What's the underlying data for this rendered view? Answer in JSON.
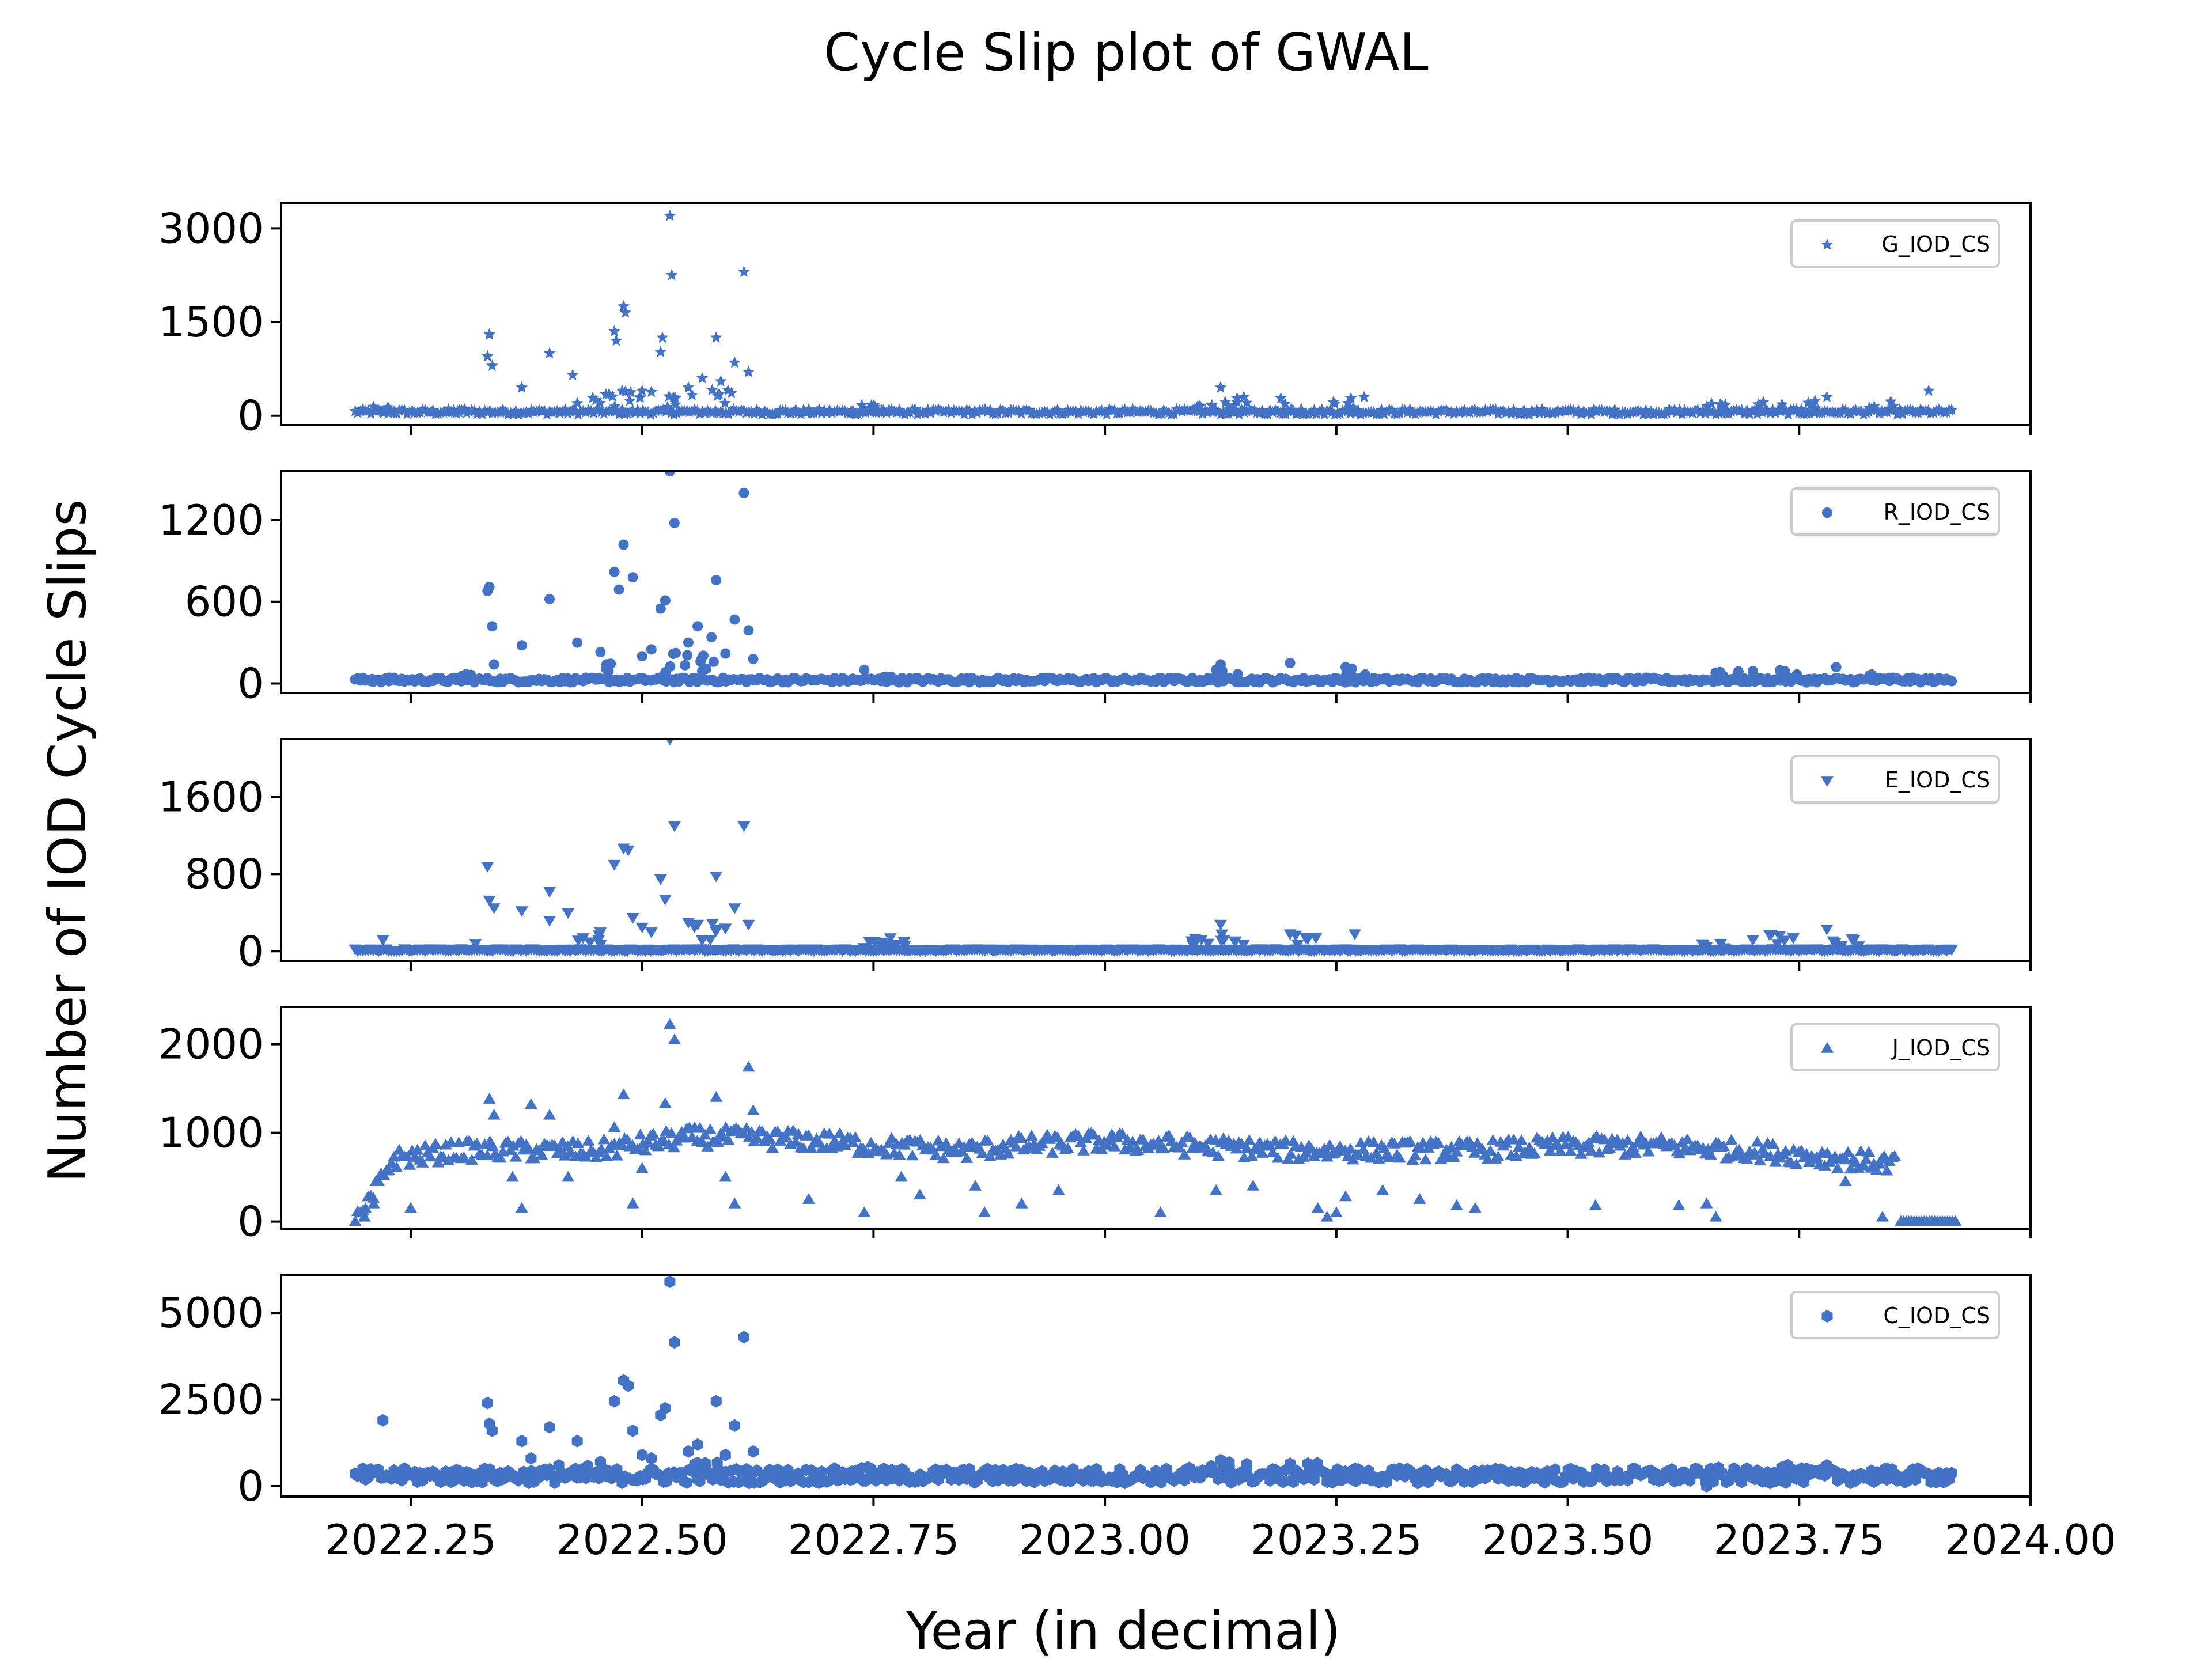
{
  "title": "Cycle Slip plot of GWAL",
  "xlabel": "Year (in decimal)",
  "ylabel": "Number of IOD Cycle Slips",
  "colors": {
    "marker": "#4472C4",
    "axis": "#000000",
    "legend_border": "#cccccc"
  },
  "chart_data": [
    {
      "type": "scatter",
      "legend": "G_IOD_CS",
      "marker": "star",
      "xlim": [
        2022.11,
        2024.0
      ],
      "ylim": [
        -150,
        3400
      ],
      "xticks": [
        "2022.25",
        "2022.50",
        "2022.75",
        "2023.00",
        "2023.25",
        "2023.50",
        "2023.75",
        "2024.00"
      ],
      "yticks": [
        0,
        1500,
        3000
      ],
      "ytick_labels": [
        "0",
        "1500",
        "3000"
      ],
      "baseline": 60,
      "points": [
        [
          2022.335,
          1300
        ],
        [
          2022.333,
          950
        ],
        [
          2022.338,
          800
        ],
        [
          2022.37,
          450
        ],
        [
          2022.4,
          1000
        ],
        [
          2022.425,
          650
        ],
        [
          2022.47,
          1350
        ],
        [
          2022.472,
          1200
        ],
        [
          2022.48,
          1750
        ],
        [
          2022.482,
          1650
        ],
        [
          2022.52,
          1020
        ],
        [
          2022.522,
          1250
        ],
        [
          2022.53,
          3200
        ],
        [
          2022.532,
          2250
        ],
        [
          2022.55,
          450
        ],
        [
          2022.565,
          600
        ],
        [
          2022.58,
          1250
        ],
        [
          2022.585,
          550
        ],
        [
          2022.6,
          850
        ],
        [
          2022.61,
          2300
        ],
        [
          2022.615,
          700
        ],
        [
          2022.5,
          400
        ],
        [
          2022.51,
          380
        ],
        [
          2022.45,
          250
        ],
        [
          2022.43,
          200
        ],
        [
          2023.125,
          450
        ],
        [
          2023.15,
          300
        ],
        [
          2023.28,
          300
        ],
        [
          2023.89,
          400
        ],
        [
          2023.78,
          300
        ],
        [
          2023.19,
          280
        ]
      ],
      "baseline_spikes": [
        [
          2022.22,
          120
        ],
        [
          2022.3,
          100
        ],
        [
          2022.46,
          300
        ],
        [
          2022.49,
          350
        ],
        [
          2022.54,
          300
        ],
        [
          2022.59,
          350
        ],
        [
          2022.74,
          150
        ],
        [
          2022.76,
          120
        ],
        [
          2023.11,
          200
        ],
        [
          2023.14,
          250
        ],
        [
          2023.2,
          200
        ],
        [
          2023.26,
          250
        ],
        [
          2023.66,
          180
        ],
        [
          2023.72,
          220
        ],
        [
          2023.76,
          220
        ],
        [
          2023.84,
          200
        ]
      ]
    },
    {
      "type": "scatter",
      "legend": "R_IOD_CS",
      "marker": "circle",
      "xlim": [
        2022.11,
        2024.0
      ],
      "ylim": [
        -70,
        1560
      ],
      "xticks": [
        "2022.25",
        "2022.50",
        "2022.75",
        "2023.00",
        "2023.25",
        "2023.50",
        "2023.75",
        "2024.00"
      ],
      "yticks": [
        0,
        600,
        1200
      ],
      "ytick_labels": [
        "0",
        "600",
        "1200"
      ],
      "baseline": 25,
      "points": [
        [
          2022.333,
          680
        ],
        [
          2022.335,
          710
        ],
        [
          2022.338,
          420
        ],
        [
          2022.34,
          140
        ],
        [
          2022.4,
          620
        ],
        [
          2022.37,
          280
        ],
        [
          2022.43,
          300
        ],
        [
          2022.47,
          820
        ],
        [
          2022.475,
          690
        ],
        [
          2022.48,
          1020
        ],
        [
          2022.49,
          780
        ],
        [
          2022.52,
          550
        ],
        [
          2022.525,
          610
        ],
        [
          2022.53,
          1560
        ],
        [
          2022.535,
          1180
        ],
        [
          2022.55,
          300
        ],
        [
          2022.56,
          420
        ],
        [
          2022.575,
          340
        ],
        [
          2022.58,
          760
        ],
        [
          2022.6,
          470
        ],
        [
          2022.61,
          1400
        ],
        [
          2022.615,
          390
        ],
        [
          2022.5,
          200
        ],
        [
          2022.51,
          250
        ],
        [
          2022.455,
          230
        ],
        [
          2022.59,
          220
        ],
        [
          2022.62,
          180
        ],
        [
          2022.74,
          100
        ],
        [
          2023.125,
          140
        ],
        [
          2023.2,
          150
        ],
        [
          2023.26,
          120
        ],
        [
          2023.79,
          120
        ],
        [
          2023.7,
          90
        ]
      ],
      "baseline_spikes": [
        [
          2022.22,
          40
        ],
        [
          2022.3,
          60
        ],
        [
          2022.46,
          150
        ],
        [
          2022.54,
          200
        ],
        [
          2022.57,
          180
        ],
        [
          2022.76,
          70
        ],
        [
          2023.13,
          100
        ],
        [
          2023.27,
          100
        ],
        [
          2023.67,
          80
        ],
        [
          2023.74,
          90
        ],
        [
          2023.84,
          60
        ]
      ]
    },
    {
      "type": "scatter",
      "legend": "E_IOD_CS",
      "marker": "triangle-down",
      "xlim": [
        2022.11,
        2024.0
      ],
      "ylim": [
        -100,
        2200
      ],
      "xticks": [
        "2022.25",
        "2022.50",
        "2022.75",
        "2023.00",
        "2023.25",
        "2023.50",
        "2023.75",
        "2024.00"
      ],
      "yticks": [
        0,
        800,
        1600
      ],
      "ytick_labels": [
        "0",
        "800",
        "1600"
      ],
      "baseline": 15,
      "points": [
        [
          2022.333,
          880
        ],
        [
          2022.335,
          530
        ],
        [
          2022.34,
          450
        ],
        [
          2022.37,
          420
        ],
        [
          2022.4,
          620
        ],
        [
          2022.4,
          320
        ],
        [
          2022.42,
          400
        ],
        [
          2022.47,
          900
        ],
        [
          2022.48,
          1070
        ],
        [
          2022.485,
          1050
        ],
        [
          2022.49,
          350
        ],
        [
          2022.52,
          750
        ],
        [
          2022.525,
          540
        ],
        [
          2022.53,
          2200
        ],
        [
          2022.535,
          1300
        ],
        [
          2022.55,
          300
        ],
        [
          2022.56,
          280
        ],
        [
          2022.58,
          780
        ],
        [
          2022.6,
          450
        ],
        [
          2022.61,
          1300
        ],
        [
          2022.615,
          280
        ],
        [
          2022.5,
          250
        ],
        [
          2022.51,
          200
        ],
        [
          2022.455,
          200
        ],
        [
          2022.59,
          240
        ],
        [
          2023.125,
          280
        ],
        [
          2023.2,
          180
        ],
        [
          2023.27,
          180
        ],
        [
          2023.78,
          230
        ],
        [
          2023.7,
          120
        ],
        [
          2022.22,
          120
        ],
        [
          2022.32,
          80
        ]
      ],
      "baseline_spikes": [
        [
          2022.44,
          150
        ],
        [
          2022.57,
          250
        ],
        [
          2022.75,
          90
        ],
        [
          2022.77,
          120
        ],
        [
          2023.1,
          120
        ],
        [
          2023.14,
          160
        ],
        [
          2023.22,
          140
        ],
        [
          2023.66,
          80
        ],
        [
          2023.73,
          150
        ],
        [
          2023.8,
          120
        ]
      ]
    },
    {
      "type": "scatter",
      "legend": "J_IOD_CS",
      "marker": "triangle-up",
      "xlim": [
        2022.11,
        2024.0
      ],
      "ylim": [
        -80,
        2420
      ],
      "xticks": [
        "2022.25",
        "2022.50",
        "2022.75",
        "2023.00",
        "2023.25",
        "2023.50",
        "2023.75",
        "2024.00"
      ],
      "yticks": [
        0,
        1000,
        2000
      ],
      "ytick_labels": [
        "0",
        "1000",
        "2000"
      ],
      "band_segments": [
        [
          2022.19,
          0
        ],
        [
          2022.2,
          100
        ],
        [
          2022.215,
          400
        ],
        [
          2022.23,
          700
        ],
        [
          2022.3,
          800
        ],
        [
          2022.45,
          800
        ],
        [
          2022.55,
          950
        ],
        [
          2022.6,
          950
        ],
        [
          2022.7,
          900
        ],
        [
          2022.75,
          850
        ],
        [
          2022.85,
          800
        ],
        [
          2022.9,
          850
        ],
        [
          2023.0,
          900
        ],
        [
          2023.1,
          850
        ],
        [
          2023.2,
          800
        ],
        [
          2023.3,
          800
        ],
        [
          2023.4,
          800
        ],
        [
          2023.5,
          850
        ],
        [
          2023.6,
          850
        ],
        [
          2023.7,
          800
        ],
        [
          2023.8,
          700
        ],
        [
          2023.855,
          650
        ]
      ],
      "tail": [
        2023.86,
        2023.92,
        0
      ],
      "points": [
        [
          2022.2,
          50
        ],
        [
          2022.21,
          200
        ],
        [
          2022.25,
          150
        ],
        [
          2022.335,
          1380
        ],
        [
          2022.34,
          1200
        ],
        [
          2022.36,
          500
        ],
        [
          2022.37,
          150
        ],
        [
          2022.38,
          1320
        ],
        [
          2022.4,
          1200
        ],
        [
          2022.42,
          500
        ],
        [
          2022.47,
          1060
        ],
        [
          2022.48,
          1430
        ],
        [
          2022.49,
          200
        ],
        [
          2022.5,
          600
        ],
        [
          2022.53,
          2220
        ],
        [
          2022.535,
          2050
        ],
        [
          2022.525,
          1330
        ],
        [
          2022.58,
          1400
        ],
        [
          2022.59,
          500
        ],
        [
          2022.6,
          200
        ],
        [
          2022.615,
          1740
        ],
        [
          2022.62,
          1250
        ],
        [
          2022.68,
          250
        ],
        [
          2022.74,
          100
        ],
        [
          2022.78,
          500
        ],
        [
          2022.8,
          300
        ],
        [
          2022.86,
          400
        ],
        [
          2022.87,
          100
        ],
        [
          2022.91,
          200
        ],
        [
          2022.95,
          350
        ],
        [
          2023.06,
          100
        ],
        [
          2023.12,
          350
        ],
        [
          2023.16,
          400
        ],
        [
          2023.23,
          150
        ],
        [
          2023.24,
          50
        ],
        [
          2023.25,
          100
        ],
        [
          2023.26,
          280
        ],
        [
          2023.3,
          350
        ],
        [
          2023.34,
          250
        ],
        [
          2023.38,
          180
        ],
        [
          2023.4,
          150
        ],
        [
          2023.53,
          180
        ],
        [
          2023.62,
          180
        ],
        [
          2023.65,
          200
        ],
        [
          2023.66,
          50
        ],
        [
          2023.8,
          450
        ],
        [
          2023.84,
          50
        ]
      ]
    },
    {
      "type": "scatter",
      "legend": "C_IOD_CS",
      "marker": "hexagon",
      "xlim": [
        2022.11,
        2024.0
      ],
      "ylim": [
        -300,
        6100
      ],
      "xticks": [
        "2022.25",
        "2022.50",
        "2022.75",
        "2023.00",
        "2023.25",
        "2023.50",
        "2023.75",
        "2024.00"
      ],
      "yticks": [
        0,
        2500,
        5000
      ],
      "ytick_labels": [
        "0",
        "2500",
        "5000"
      ],
      "baseline": 300,
      "points": [
        [
          2022.22,
          1900
        ],
        [
          2022.333,
          2400
        ],
        [
          2022.335,
          1800
        ],
        [
          2022.338,
          1600
        ],
        [
          2022.4,
          1700
        ],
        [
          2022.37,
          1300
        ],
        [
          2022.43,
          1300
        ],
        [
          2022.47,
          2450
        ],
        [
          2022.48,
          3050
        ],
        [
          2022.485,
          2900
        ],
        [
          2022.49,
          1600
        ],
        [
          2022.52,
          2050
        ],
        [
          2022.525,
          2250
        ],
        [
          2022.53,
          5900
        ],
        [
          2022.535,
          4150
        ],
        [
          2022.55,
          1000
        ],
        [
          2022.56,
          1200
        ],
        [
          2022.58,
          2450
        ],
        [
          2022.6,
          1750
        ],
        [
          2022.61,
          4300
        ],
        [
          2022.5,
          900
        ],
        [
          2022.51,
          800
        ],
        [
          2022.455,
          700
        ],
        [
          2022.59,
          900
        ],
        [
          2022.62,
          1000
        ],
        [
          2023.125,
          750
        ],
        [
          2023.2,
          650
        ],
        [
          2023.27,
          500
        ],
        [
          2023.78,
          600
        ],
        [
          2023.65,
          0
        ],
        [
          2022.38,
          800
        ],
        [
          2022.41,
          600
        ]
      ],
      "baseline_spikes": [
        [
          2022.3,
          350
        ],
        [
          2022.44,
          500
        ],
        [
          2022.57,
          600
        ],
        [
          2022.74,
          500
        ],
        [
          2022.76,
          450
        ],
        [
          2023.1,
          550
        ],
        [
          2023.14,
          600
        ],
        [
          2023.22,
          550
        ],
        [
          2023.67,
          450
        ],
        [
          2023.73,
          550
        ],
        [
          2023.84,
          450
        ]
      ]
    }
  ]
}
